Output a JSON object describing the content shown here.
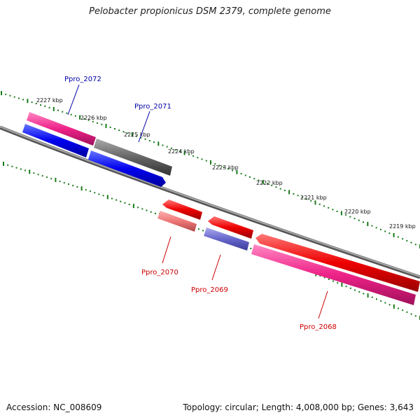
{
  "title": "Pelobacter propionicus DSM 2379, complete genome",
  "footer": {
    "accession": "Accession: NC_008609",
    "stats": "Topology: circular; Length: 4,008,000 bp; Genes: 3,643"
  },
  "colors": {
    "backbone": "#888888",
    "ticks": "#1a7a1a",
    "forward_label": "#0000aa",
    "reverse_label": "#cc0000"
  },
  "kbp_labels": [
    "2227 kbp",
    "2226 kbp",
    "2225 kbp",
    "2224 kbp",
    "2223 kbp",
    "2222 kbp",
    "2221 kbp",
    "2220 kbp",
    "2219 kbp"
  ],
  "features": [
    {
      "name": "Ppro_2072",
      "strand": "forward",
      "color": "#ee2288",
      "cds_color": "#0000ee"
    },
    {
      "name": "Ppro_2071",
      "strand": "forward",
      "color": "#666666",
      "cds_color": "#0000ee"
    },
    {
      "name": "Ppro_2070",
      "strand": "reverse",
      "color": "#ee0000",
      "cds_color": "#ee7777"
    },
    {
      "name": "Ppro_2069",
      "strand": "reverse",
      "color": "#ee0000",
      "cds_color": "#6666cc"
    },
    {
      "name": "Ppro_2068",
      "strand": "reverse",
      "color": "#ee0000",
      "cds_color": "#ee2288"
    }
  ]
}
